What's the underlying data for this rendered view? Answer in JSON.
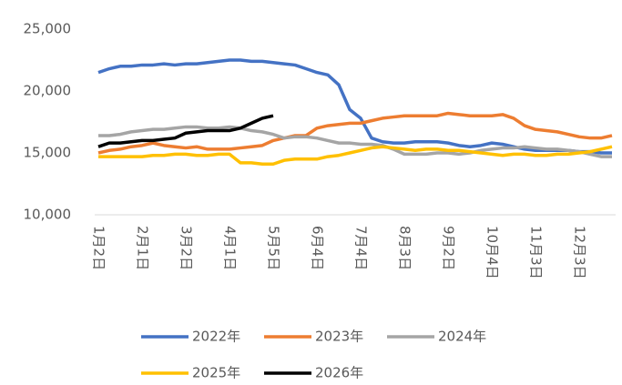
{
  "chart_data": {
    "type": "line",
    "categories": [
      "1月2日",
      null,
      null,
      null,
      "2月1日",
      null,
      null,
      null,
      "3月2日",
      null,
      null,
      null,
      "4月1日",
      null,
      null,
      null,
      "5月5日",
      null,
      null,
      null,
      "6月4日",
      null,
      null,
      null,
      "7月4日",
      null,
      null,
      null,
      "8月3日",
      null,
      null,
      null,
      "9月2日",
      null,
      null,
      null,
      "10月4日",
      null,
      null,
      null,
      "11月3日",
      null,
      null,
      null,
      "12月3日",
      null,
      null,
      null
    ],
    "ylim": [
      10000,
      25000
    ],
    "yticks": [
      {
        "value": 10000,
        "label": "10,000"
      },
      {
        "value": 15000,
        "label": "15,000"
      },
      {
        "value": 20000,
        "label": "20,000"
      },
      {
        "value": 25000,
        "label": "25,000"
      }
    ],
    "grid": false,
    "legend": "bottom",
    "series": [
      {
        "name": "2022年",
        "color": "#4472c4",
        "values": [
          21500,
          21800,
          22000,
          22000,
          22100,
          22100,
          22200,
          22100,
          22200,
          22200,
          22300,
          22400,
          22500,
          22500,
          22400,
          22400,
          22300,
          22200,
          22100,
          21800,
          21500,
          21300,
          20500,
          18500,
          17800,
          16200,
          15900,
          15800,
          15800,
          15900,
          15900,
          15900,
          15800,
          15600,
          15500,
          15600,
          15800,
          15700,
          15500,
          15300,
          15200,
          15200,
          15200,
          15200,
          15100,
          15100,
          15000,
          15000
        ]
      },
      {
        "name": "2023年",
        "color": "#ed7d31",
        "values": [
          15000,
          15200,
          15300,
          15500,
          15600,
          15800,
          15600,
          15500,
          15400,
          15500,
          15300,
          15300,
          15300,
          15400,
          15500,
          15600,
          16000,
          16200,
          16400,
          16400,
          17000,
          17200,
          17300,
          17400,
          17400,
          17600,
          17800,
          17900,
          18000,
          18000,
          18000,
          18000,
          18200,
          18100,
          18000,
          18000,
          18000,
          18100,
          17800,
          17200,
          16900,
          16800,
          16700,
          16500,
          16300,
          16200,
          16200,
          16400
        ]
      },
      {
        "name": "2024年",
        "color": "#a5a5a5",
        "values": [
          16400,
          16400,
          16500,
          16700,
          16800,
          16900,
          16900,
          17000,
          17100,
          17100,
          17000,
          17000,
          17100,
          17000,
          16800,
          16700,
          16500,
          16200,
          16300,
          16300,
          16200,
          16000,
          15800,
          15800,
          15700,
          15700,
          15600,
          15300,
          14900,
          14900,
          14900,
          15000,
          15000,
          14900,
          15000,
          15200,
          15300,
          15400,
          15400,
          15500,
          15400,
          15300,
          15300,
          15200,
          15100,
          14900,
          14700,
          14700
        ]
      },
      {
        "name": "2025年",
        "color": "#ffc000",
        "values": [
          14700,
          14700,
          14700,
          14700,
          14700,
          14800,
          14800,
          14900,
          14900,
          14800,
          14800,
          14900,
          14900,
          14200,
          14200,
          14100,
          14100,
          14400,
          14500,
          14500,
          14500,
          14700,
          14800,
          15000,
          15200,
          15400,
          15500,
          15400,
          15300,
          15200,
          15300,
          15300,
          15200,
          15200,
          15100,
          15000,
          14900,
          14800,
          14900,
          14900,
          14800,
          14800,
          14900,
          14900,
          15000,
          15100,
          15300,
          15500
        ]
      },
      {
        "name": "2026年",
        "color": "#000000",
        "values": [
          15500,
          15800,
          15800,
          15900,
          16000,
          16000,
          16100,
          16200,
          16600,
          16700,
          16800,
          16800,
          16800,
          17000,
          17400,
          17800,
          18000,
          null,
          null,
          null,
          null,
          null,
          null,
          null,
          null,
          null,
          null,
          null,
          null,
          null,
          null,
          null,
          null,
          null,
          null,
          null,
          null,
          null,
          null,
          null,
          null,
          null,
          null,
          null,
          null,
          null,
          null,
          null
        ]
      }
    ]
  }
}
